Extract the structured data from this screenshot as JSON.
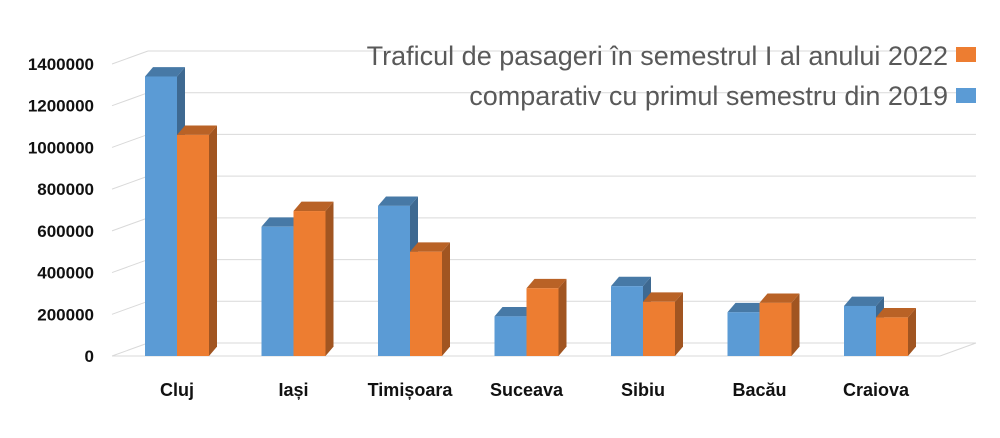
{
  "chart_data": {
    "type": "bar",
    "categories": [
      "Cluj",
      "Iași",
      "Timișoara",
      "Suceava",
      "Sibiu",
      "Bacău",
      "Craiova"
    ],
    "series": [
      {
        "name": "comparativ cu primul semestru din 2019",
        "color": "#5b9bd5",
        "values": [
          1340000,
          620000,
          720000,
          190000,
          335000,
          210000,
          240000
        ]
      },
      {
        "name": "Traficul de pasageri în semestrul I al anului 2022",
        "color": "#ed7d31",
        "values": [
          1060000,
          695000,
          500000,
          325000,
          260000,
          255000,
          185000
        ]
      }
    ],
    "yticks": [
      "0",
      "200000",
      "400000",
      "600000",
      "800000",
      "1000000",
      "1200000",
      "1400000"
    ],
    "ylim": [
      0,
      1400000
    ],
    "grid": true,
    "legend_position": "top-right",
    "style": "3d-clustered-column"
  }
}
